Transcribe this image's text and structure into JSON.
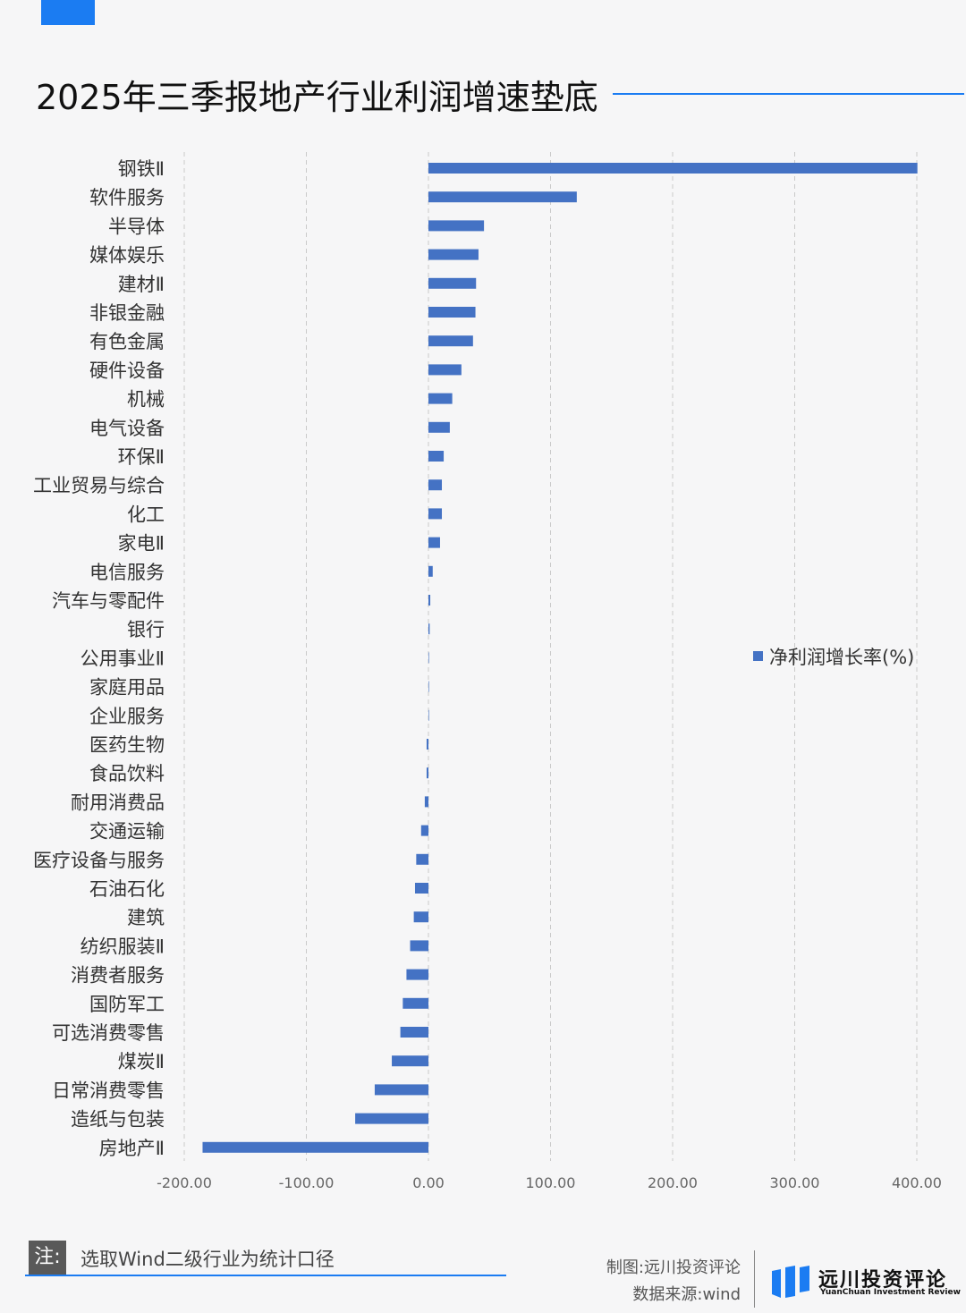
{
  "title": "2025年三季报地产行业利润增速垫底",
  "colors": {
    "accent": "#1b7cf2",
    "bar": "#4472c4"
  },
  "chart_data": {
    "type": "bar",
    "orientation": "horizontal",
    "categories": [
      "钢铁Ⅱ",
      "软件服务",
      "半导体",
      "媒体娱乐",
      "建材Ⅱ",
      "非银金融",
      "有色金属",
      "硬件设备",
      "机械",
      "电气设备",
      "环保Ⅱ",
      "工业贸易与综合",
      "化工",
      "家电Ⅱ",
      "电信服务",
      "汽车与零配件",
      "银行",
      "公用事业Ⅱ",
      "家庭用品",
      "企业服务",
      "医药生物",
      "食品饮料",
      "耐用消费品",
      "交通运输",
      "医疗设备与服务",
      "石油石化",
      "建筑",
      "纺织服装Ⅱ",
      "消费者服务",
      "国防军工",
      "可选消费零售",
      "煤炭Ⅱ",
      "日常消费零售",
      "造纸与包装",
      "房地产Ⅱ"
    ],
    "series": [
      {
        "name": "净利润增长率(%)",
        "values": [
          400.5,
          121.5,
          45.5,
          41,
          39,
          38.5,
          36.5,
          27,
          19.5,
          17.5,
          12.5,
          11,
          11,
          9.5,
          3.5,
          1.5,
          1,
          0.3,
          0.2,
          0.1,
          -1.5,
          -1.5,
          -3,
          -6,
          -10,
          -11,
          -12,
          -15,
          -18,
          -21,
          -23,
          -30,
          -44,
          -60,
          -185
        ]
      }
    ],
    "xlim": [
      -200,
      400
    ],
    "xticks": [
      "-200.00",
      "-100.00",
      "0.00",
      "100.00",
      "200.00",
      "300.00",
      "400.00"
    ],
    "grid": "vertical dashed",
    "legend_position": "right"
  },
  "footer": {
    "note_label": "注:",
    "note_text": "选取Wind二级行业为统计口径",
    "maker": "制图:远川投资评论",
    "source": "数据来源:wind",
    "logo_cn": "远川投资评论",
    "logo_en": "YuanChuan Investment Review"
  }
}
